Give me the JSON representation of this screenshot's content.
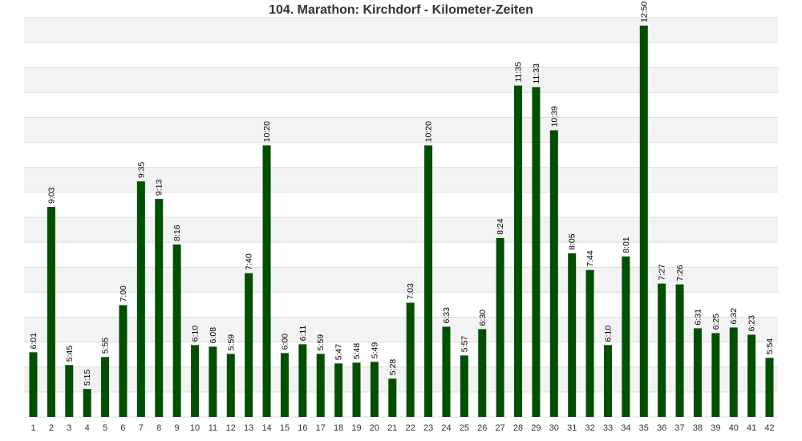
{
  "chart_data": {
    "type": "bar",
    "title": "104. Marathon: Kirchdorf - Kilometer-Zeiten",
    "xlabel": "",
    "ylabel": "",
    "categories": [
      "1",
      "2",
      "3",
      "4",
      "5",
      "6",
      "7",
      "8",
      "9",
      "10",
      "11",
      "12",
      "13",
      "14",
      "15",
      "16",
      "17",
      "18",
      "19",
      "20",
      "21",
      "22",
      "23",
      "24",
      "25",
      "26",
      "27",
      "28",
      "29",
      "30",
      "31",
      "32",
      "33",
      "34",
      "35",
      "36",
      "37",
      "38",
      "39",
      "40",
      "41",
      "42"
    ],
    "values_seconds": [
      361,
      543,
      345,
      315,
      355,
      420,
      575,
      553,
      496,
      370,
      368,
      359,
      460,
      620,
      360,
      371,
      359,
      347,
      348,
      349,
      328,
      423,
      620,
      393,
      357,
      390,
      504,
      695,
      693,
      639,
      485,
      464,
      370,
      481,
      770,
      447,
      446,
      391,
      385,
      392,
      383,
      354
    ],
    "data_labels": [
      "6:01",
      "9:03",
      "5:45",
      "5:15",
      "5:55",
      "7:00",
      "9:35",
      "9:13",
      "8:16",
      "6:10",
      "6:08",
      "5:59",
      "7:40",
      "10:20",
      "6:00",
      "6:11",
      "5:59",
      "5:47",
      "5:48",
      "5:49",
      "5:28",
      "7:03",
      "10:20",
      "6:33",
      "5:57",
      "6:30",
      "8:24",
      "11:35",
      "11:33",
      "10:39",
      "8:05",
      "7:44",
      "6:10",
      "8:01",
      "12:50",
      "7:27",
      "7:26",
      "6:31",
      "6:25",
      "6:32",
      "6:23",
      "5:54"
    ],
    "ylim_seconds": [
      280,
      780
    ],
    "grid": "horizontal bands",
    "legend": "none",
    "colors": {
      "bar": "#005000",
      "band_light": "#f3f3f3",
      "band_white": "#ffffff",
      "grid": "#dddddd"
    }
  }
}
